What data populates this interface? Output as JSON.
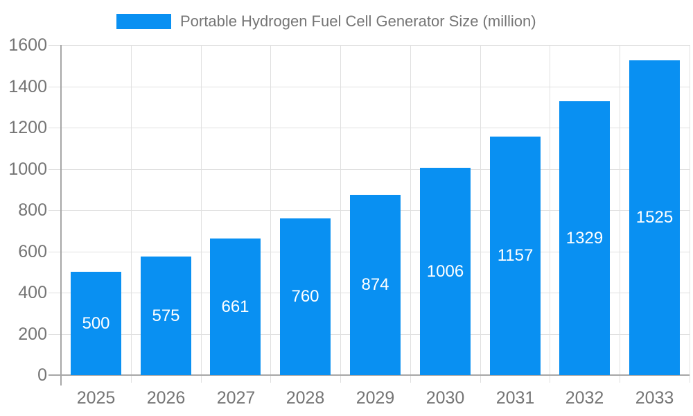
{
  "legend": {
    "label": "Portable Hydrogen Fuel Cell Generator Size (million)"
  },
  "chart_data": {
    "type": "bar",
    "title": "Portable Hydrogen Fuel Cell Generator Size (million)",
    "series_name": "Portable Hydrogen Fuel Cell Generator Size (million)",
    "categories": [
      "2025",
      "2026",
      "2027",
      "2028",
      "2029",
      "2030",
      "2031",
      "2032",
      "2033"
    ],
    "values": [
      500,
      575,
      661,
      760,
      874,
      1006,
      1157,
      1329,
      1525
    ],
    "xlabel": "",
    "ylabel": "",
    "ylim": [
      0,
      1600
    ],
    "yticks": [
      0,
      200,
      400,
      600,
      800,
      1000,
      1200,
      1400,
      1600
    ],
    "grid": true,
    "legend_position": "top",
    "colors": {
      "bar": "#0990f2",
      "value_label": "#ffffff",
      "axis_text": "#757575",
      "axis_line": "#a6a6a6",
      "gridline": "#e0e0e0",
      "background": "#ffffff"
    }
  }
}
